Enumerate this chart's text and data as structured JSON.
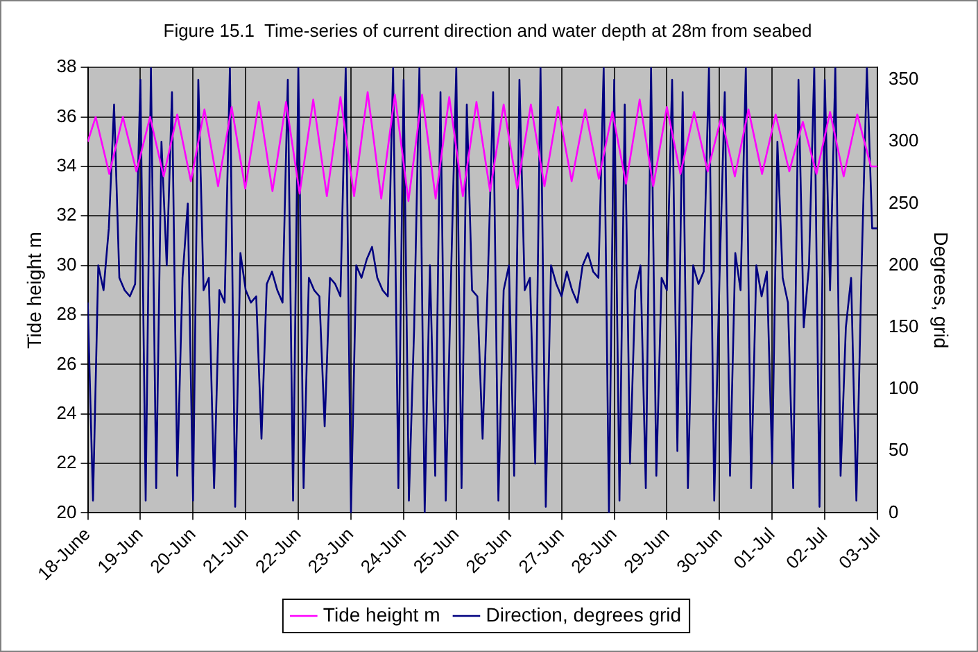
{
  "chart_data": {
    "type": "line",
    "title": "Figure 15.1  Time-series of current direction and water depth at 28m from seabed",
    "ylabel": "Tide height m",
    "y2label": "Degrees, grid",
    "xlim": [
      "--06-18",
      "--07-03"
    ],
    "xticks": [
      {
        "value": "--06-18",
        "label": "18-June"
      },
      {
        "value": "--06-19",
        "label": "19-Jun"
      },
      {
        "value": "--06-20",
        "label": "20-Jun"
      },
      {
        "value": "--06-21",
        "label": "21-Jun"
      },
      {
        "value": "--06-22",
        "label": "22-Jun"
      },
      {
        "value": "--06-23",
        "label": "23-Jun"
      },
      {
        "value": "--06-24",
        "label": "24-Jun"
      },
      {
        "value": "--06-25",
        "label": "25-Jun"
      },
      {
        "value": "--06-26",
        "label": "26-Jun"
      },
      {
        "value": "--06-27",
        "label": "27-Jun"
      },
      {
        "value": "--06-28",
        "label": "28-Jun"
      },
      {
        "value": "--06-29",
        "label": "29-Jun"
      },
      {
        "value": "--06-30",
        "label": "30-Jun"
      },
      {
        "value": "--07-01",
        "label": "01-Jul"
      },
      {
        "value": "--07-02",
        "label": "02-Jul"
      },
      {
        "value": "--07-03",
        "label": "03-Jul"
      }
    ],
    "ylim": [
      20,
      38
    ],
    "yticks": [
      20,
      22,
      24,
      26,
      28,
      30,
      32,
      34,
      36,
      38
    ],
    "y2lim": [
      0,
      360
    ],
    "y2ticks": [
      0,
      50,
      100,
      150,
      200,
      250,
      300,
      350
    ],
    "grid": true,
    "legend": "bottom",
    "marker": "none",
    "line_style": "solid",
    "series": [
      {
        "name": "Tide height m",
        "color": "#ff00ff",
        "x": [
          "--06-18T00:00",
          "--06-18T03:36",
          "--06-18T09:48",
          "--06-18T16:00",
          "--06-18T22:12",
          "--06-19T04:24",
          "--06-19T10:36",
          "--06-19T16:48",
          "--06-19T23:00",
          "--06-20T05:12",
          "--06-20T11:24",
          "--06-20T17:36",
          "--06-20T23:48",
          "--06-21T06:00",
          "--06-21T12:12",
          "--06-21T18:24",
          "--06-22T00:36",
          "--06-22T06:48",
          "--06-22T13:00",
          "--06-22T19:12",
          "--06-23T01:24",
          "--06-23T07:36",
          "--06-23T13:48",
          "--06-23T20:00",
          "--06-24T02:12",
          "--06-24T08:24",
          "--06-24T14:36",
          "--06-24T20:48",
          "--06-25T03:00",
          "--06-25T09:12",
          "--06-25T15:24",
          "--06-25T21:36",
          "--06-26T03:48",
          "--06-26T10:00",
          "--06-26T16:12",
          "--06-26T22:24",
          "--06-27T04:36",
          "--06-27T10:48",
          "--06-27T17:00",
          "--06-27T23:12",
          "--06-28T05:24",
          "--06-28T11:36",
          "--06-28T17:48",
          "--06-29T00:00",
          "--06-29T06:12",
          "--06-29T12:24",
          "--06-29T18:36",
          "--06-30T00:48",
          "--06-30T07:00",
          "--06-30T13:12",
          "--06-30T19:24",
          "--07-01T01:36",
          "--07-01T07:48",
          "--07-01T14:00",
          "--07-01T20:12",
          "--07-02T02:24",
          "--07-02T08:36",
          "--07-02T14:48",
          "--07-02T21:00",
          "--07-03T00:00"
        ],
        "values": [
          35,
          36,
          33.7,
          36,
          33.8,
          36,
          33.6,
          36.1,
          33.4,
          36.3,
          33.2,
          36.4,
          33.1,
          36.6,
          33,
          36.6,
          32.9,
          36.7,
          32.8,
          36.8,
          32.8,
          37,
          32.7,
          36.9,
          32.6,
          36.9,
          32.7,
          36.8,
          32.8,
          36.6,
          33,
          36.5,
          33.1,
          36.5,
          33.2,
          36.4,
          33.4,
          36.3,
          33.5,
          36.2,
          33.3,
          36.7,
          33.2,
          36.4,
          33.7,
          36.2,
          33.8,
          36,
          33.6,
          36.3,
          33.7,
          36.1,
          33.8,
          35.8,
          33.7,
          36.2,
          33.6,
          36.1,
          34,
          34
        ]
      },
      {
        "name": "Direction, degrees grid",
        "color": "#000080",
        "axis": "y2",
        "x": [
          "--06-18T00:00",
          "--06-18T02:24",
          "--06-18T04:48",
          "--06-18T07:12",
          "--06-18T09:36",
          "--06-18T12:00",
          "--06-18T14:24",
          "--06-18T16:48",
          "--06-18T19:12",
          "--06-18T21:36",
          "--06-19T00:00",
          "--06-19T02:24",
          "--06-19T04:48",
          "--06-19T07:12",
          "--06-19T09:36",
          "--06-19T12:00",
          "--06-19T14:24",
          "--06-19T16:48",
          "--06-19T19:12",
          "--06-19T21:36",
          "--06-20T00:00",
          "--06-20T02:24",
          "--06-20T04:48",
          "--06-20T07:12",
          "--06-20T09:36",
          "--06-20T12:00",
          "--06-20T14:24",
          "--06-20T16:48",
          "--06-20T19:12",
          "--06-20T21:36",
          "--06-21T00:00",
          "--06-21T02:24",
          "--06-21T04:48",
          "--06-21T07:12",
          "--06-21T09:36",
          "--06-21T12:00",
          "--06-21T14:24",
          "--06-21T16:48",
          "--06-21T19:12",
          "--06-21T21:36",
          "--06-22T00:00",
          "--06-22T02:24",
          "--06-22T04:48",
          "--06-22T07:12",
          "--06-22T09:36",
          "--06-22T12:00",
          "--06-22T14:24",
          "--06-22T16:48",
          "--06-22T19:12",
          "--06-22T21:36",
          "--06-23T00:00",
          "--06-23T02:24",
          "--06-23T04:48",
          "--06-23T07:12",
          "--06-23T09:36",
          "--06-23T12:00",
          "--06-23T14:24",
          "--06-23T16:48",
          "--06-23T19:12",
          "--06-23T21:36",
          "--06-24T00:00",
          "--06-24T02:24",
          "--06-24T04:48",
          "--06-24T07:12",
          "--06-24T09:36",
          "--06-24T12:00",
          "--06-24T14:24",
          "--06-24T16:48",
          "--06-24T19:12",
          "--06-24T21:36",
          "--06-25T00:00",
          "--06-25T02:24",
          "--06-25T04:48",
          "--06-25T07:12",
          "--06-25T09:36",
          "--06-25T12:00",
          "--06-25T14:24",
          "--06-25T16:48",
          "--06-25T19:12",
          "--06-25T21:36",
          "--06-26T00:00",
          "--06-26T02:24",
          "--06-26T04:48",
          "--06-26T07:12",
          "--06-26T09:36",
          "--06-26T12:00",
          "--06-26T14:24",
          "--06-26T16:48",
          "--06-26T19:12",
          "--06-26T21:36",
          "--06-27T00:00",
          "--06-27T02:24",
          "--06-27T04:48",
          "--06-27T07:12",
          "--06-27T09:36",
          "--06-27T12:00",
          "--06-27T14:24",
          "--06-27T16:48",
          "--06-27T19:12",
          "--06-27T21:36",
          "--06-28T00:00",
          "--06-28T02:24",
          "--06-28T04:48",
          "--06-28T07:12",
          "--06-28T09:36",
          "--06-28T12:00",
          "--06-28T14:24",
          "--06-28T16:48",
          "--06-28T19:12",
          "--06-28T21:36",
          "--06-29T00:00",
          "--06-29T02:24",
          "--06-29T04:48",
          "--06-29T07:12",
          "--06-29T09:36",
          "--06-29T12:00",
          "--06-29T14:24",
          "--06-29T16:48",
          "--06-29T19:12",
          "--06-29T21:36",
          "--06-30T00:00",
          "--06-30T02:24",
          "--06-30T04:48",
          "--06-30T07:12",
          "--06-30T09:36",
          "--06-30T12:00",
          "--06-30T14:24",
          "--06-30T16:48",
          "--06-30T19:12",
          "--06-30T21:36",
          "--07-01T00:00",
          "--07-01T02:24",
          "--07-01T04:48",
          "--07-01T07:12",
          "--07-01T09:36",
          "--07-01T12:00",
          "--07-01T14:24",
          "--07-01T16:48",
          "--07-01T19:12",
          "--07-01T21:36",
          "--07-02T00:00",
          "--07-02T02:24",
          "--07-02T04:48",
          "--07-02T07:12",
          "--07-02T09:36",
          "--07-02T12:00",
          "--07-02T14:24",
          "--07-02T16:48",
          "--07-02T19:12",
          "--07-02T21:36",
          "--07-03T00:00"
        ],
        "values": [
          170,
          10,
          200,
          180,
          230,
          330,
          190,
          180,
          175,
          185,
          350,
          10,
          360,
          20,
          300,
          200,
          340,
          30,
          190,
          250,
          10,
          350,
          180,
          190,
          20,
          180,
          170,
          360,
          5,
          210,
          180,
          170,
          175,
          60,
          185,
          195,
          180,
          170,
          350,
          10,
          360,
          20,
          190,
          180,
          175,
          70,
          190,
          185,
          175,
          360,
          0,
          200,
          190,
          205,
          215,
          190,
          180,
          175,
          360,
          20,
          350,
          10,
          150,
          360,
          0,
          200,
          30,
          340,
          10,
          190,
          360,
          20,
          330,
          180,
          175,
          60,
          190,
          340,
          10,
          180,
          200,
          30,
          350,
          180,
          190,
          40,
          360,
          5,
          200,
          185,
          175,
          195,
          180,
          170,
          200,
          210,
          195,
          190,
          360,
          0,
          350,
          10,
          330,
          40,
          180,
          200,
          20,
          360,
          30,
          190,
          180,
          350,
          50,
          340,
          20,
          200,
          185,
          195,
          360,
          10,
          190,
          340,
          30,
          210,
          180,
          360,
          20,
          200,
          175,
          195,
          40,
          300,
          190,
          170,
          20,
          350,
          150,
          200,
          360,
          5,
          350,
          180,
          360,
          30,
          150,
          190,
          10,
          200,
          360,
          230,
          230
        ]
      }
    ]
  }
}
